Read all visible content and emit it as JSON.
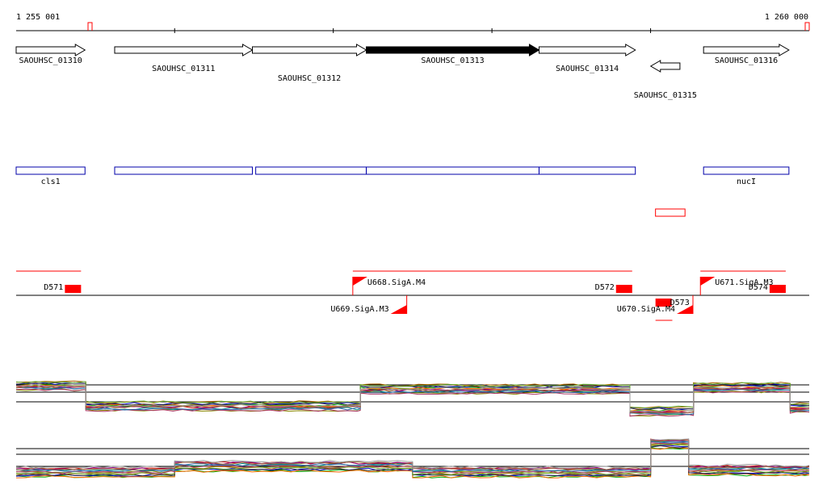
{
  "coords": {
    "start_label": "1 255 001",
    "end_label": "1 260 000",
    "start": 1255001,
    "end": 1260000
  },
  "genes": [
    {
      "label": "SAOUHSC_01310",
      "start": 1255001,
      "end": 1255435,
      "strand": "+",
      "highlight": false
    },
    {
      "label": "SAOUHSC_01311",
      "start": 1255622,
      "end": 1256490,
      "strand": "+",
      "highlight": false
    },
    {
      "label": "SAOUHSC_01312",
      "start": 1256490,
      "end": 1257208,
      "strand": "+",
      "highlight": false
    },
    {
      "label": "SAOUHSC_01313",
      "start": 1257208,
      "end": 1258297,
      "strand": "+",
      "highlight": true
    },
    {
      "label": "SAOUHSC_01314",
      "start": 1258297,
      "end": 1258904,
      "strand": "+",
      "highlight": false
    },
    {
      "label": "SAOUHSC_01315",
      "start": 1259001,
      "end": 1259185,
      "strand": "-",
      "highlight": false
    },
    {
      "label": "SAOUHSC_01316",
      "start": 1259334,
      "end": 1259872,
      "strand": "+",
      "highlight": false
    }
  ],
  "operons": [
    {
      "label": "cls1",
      "start": 1255001,
      "end": 1255435
    },
    {
      "label": "",
      "start": 1255622,
      "end": 1256490
    },
    {
      "label": "",
      "start": 1256511,
      "end": 1257208
    },
    {
      "label": "",
      "start": 1257208,
      "end": 1258297
    },
    {
      "label": "",
      "start": 1258297,
      "end": 1258904
    },
    {
      "label": "nucI",
      "start": 1259334,
      "end": 1259872
    }
  ],
  "small_feature": {
    "start": 1259031,
    "end": 1259217
  },
  "tiling": {
    "segments": [
      {
        "label": "D571",
        "start": 1255001,
        "end": 1255410,
        "strand": "+"
      },
      {
        "label": "U668.SigA.M4",
        "start": 1257123,
        "end": 1258884,
        "strand": "+"
      },
      {
        "label": "D572",
        "start": 1258762,
        "end": 1258884,
        "strand": "+"
      },
      {
        "label": "U669.SigA.M3",
        "start": 1257123,
        "end": 1257463,
        "strand": "-"
      },
      {
        "label": "D573",
        "start": 1259031,
        "end": 1259137,
        "strand": "-"
      },
      {
        "label": "U670.SigA.M4",
        "start": 1259031,
        "end": 1259267,
        "strand": "-"
      },
      {
        "label": "U671.SigA.M3",
        "start": 1259314,
        "end": 1259852,
        "strand": "+"
      },
      {
        "label": "D574",
        "start": 1259750,
        "end": 1259852,
        "strand": "+"
      }
    ]
  },
  "expression": {
    "top": {
      "plateaus": [
        [
          1255001,
          1255440,
          0.75
        ],
        [
          1255440,
          1257170,
          0.15
        ],
        [
          1257170,
          1258870,
          0.65
        ],
        [
          1258870,
          1259270,
          0.0
        ],
        [
          1259270,
          1259880,
          0.7
        ],
        [
          1259880,
          1260000,
          0.1
        ]
      ]
    },
    "bottom": {
      "plateaus": [
        [
          1255001,
          1256000,
          0.15
        ],
        [
          1256000,
          1257500,
          0.3
        ],
        [
          1257500,
          1259000,
          0.15
        ],
        [
          1259000,
          1259240,
          0.9
        ],
        [
          1259240,
          1260000,
          0.2
        ]
      ]
    },
    "colors": [
      "#cc0000",
      "#00aa00",
      "#0000cc",
      "#aa6600",
      "#888800",
      "#008888",
      "#880088",
      "#ff6600",
      "#333333",
      "#66aa33",
      "#aa3366",
      "#3366aa",
      "#996633",
      "#999999"
    ]
  },
  "colors": {
    "accent_red": "#ff0000",
    "operon_blue": "#0000aa",
    "gene_fill": "#ffffff",
    "highlight_fill": "#000000"
  }
}
